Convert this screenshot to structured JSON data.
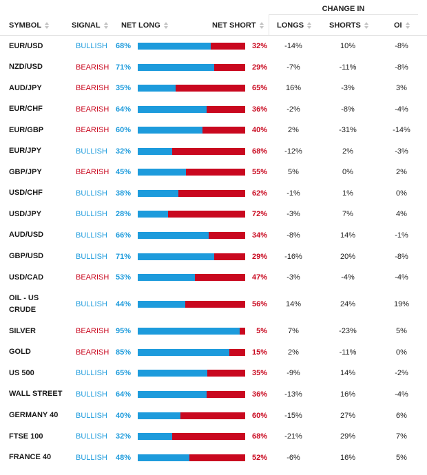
{
  "header": {
    "change_in": "CHANGE IN",
    "symbol": "SYMBOL",
    "signal": "SIGNAL",
    "net_long": "NET LONG",
    "net_short": "NET SHORT",
    "longs": "LONGS",
    "shorts": "SHORTS",
    "oi": "OI"
  },
  "colors": {
    "bullish": "#1d9bdc",
    "bearish": "#c9081f"
  },
  "rows": [
    {
      "symbol": "EUR/USD",
      "signal": "BULLISH",
      "net_long": "68%",
      "net_short": "32%",
      "long_fraction": 0.68,
      "longs": "-14%",
      "shorts": "10%",
      "oi": "-8%"
    },
    {
      "symbol": "NZD/USD",
      "signal": "BEARISH",
      "net_long": "71%",
      "net_short": "29%",
      "long_fraction": 0.71,
      "longs": "-7%",
      "shorts": "-11%",
      "oi": "-8%"
    },
    {
      "symbol": "AUD/JPY",
      "signal": "BEARISH",
      "net_long": "35%",
      "net_short": "65%",
      "long_fraction": 0.35,
      "longs": "16%",
      "shorts": "-3%",
      "oi": "3%"
    },
    {
      "symbol": "EUR/CHF",
      "signal": "BEARISH",
      "net_long": "64%",
      "net_short": "36%",
      "long_fraction": 0.64,
      "longs": "-2%",
      "shorts": "-8%",
      "oi": "-4%"
    },
    {
      "symbol": "EUR/GBP",
      "signal": "BEARISH",
      "net_long": "60%",
      "net_short": "40%",
      "long_fraction": 0.6,
      "longs": "2%",
      "shorts": "-31%",
      "oi": "-14%"
    },
    {
      "symbol": "EUR/JPY",
      "signal": "BULLISH",
      "net_long": "32%",
      "net_short": "68%",
      "long_fraction": 0.32,
      "longs": "-12%",
      "shorts": "2%",
      "oi": "-3%"
    },
    {
      "symbol": "GBP/JPY",
      "signal": "BEARISH",
      "net_long": "45%",
      "net_short": "55%",
      "long_fraction": 0.45,
      "longs": "5%",
      "shorts": "0%",
      "oi": "2%"
    },
    {
      "symbol": "USD/CHF",
      "signal": "BULLISH",
      "net_long": "38%",
      "net_short": "62%",
      "long_fraction": 0.38,
      "longs": "-1%",
      "shorts": "1%",
      "oi": "0%"
    },
    {
      "symbol": "USD/JPY",
      "signal": "BULLISH",
      "net_long": "28%",
      "net_short": "72%",
      "long_fraction": 0.28,
      "longs": "-3%",
      "shorts": "7%",
      "oi": "4%"
    },
    {
      "symbol": "AUD/USD",
      "signal": "BULLISH",
      "net_long": "66%",
      "net_short": "34%",
      "long_fraction": 0.66,
      "longs": "-8%",
      "shorts": "14%",
      "oi": "-1%"
    },
    {
      "symbol": "GBP/USD",
      "signal": "BULLISH",
      "net_long": "71%",
      "net_short": "29%",
      "long_fraction": 0.71,
      "longs": "-16%",
      "shorts": "20%",
      "oi": "-8%"
    },
    {
      "symbol": "USD/CAD",
      "signal": "BEARISH",
      "net_long": "53%",
      "net_short": "47%",
      "long_fraction": 0.53,
      "longs": "-3%",
      "shorts": "-4%",
      "oi": "-4%"
    },
    {
      "symbol": "OIL - US CRUDE",
      "signal": "BULLISH",
      "net_long": "44%",
      "net_short": "56%",
      "long_fraction": 0.44,
      "longs": "14%",
      "shorts": "24%",
      "oi": "19%"
    },
    {
      "symbol": "SILVER",
      "signal": "BEARISH",
      "net_long": "95%",
      "net_short": "5%",
      "long_fraction": 0.95,
      "longs": "7%",
      "shorts": "-23%",
      "oi": "5%"
    },
    {
      "symbol": "GOLD",
      "signal": "BEARISH",
      "net_long": "85%",
      "net_short": "15%",
      "long_fraction": 0.85,
      "longs": "2%",
      "shorts": "-11%",
      "oi": "0%"
    },
    {
      "symbol": "US 500",
      "signal": "BULLISH",
      "net_long": "65%",
      "net_short": "35%",
      "long_fraction": 0.65,
      "longs": "-9%",
      "shorts": "14%",
      "oi": "-2%"
    },
    {
      "symbol": "WALL STREET",
      "signal": "BULLISH",
      "net_long": "64%",
      "net_short": "36%",
      "long_fraction": 0.64,
      "longs": "-13%",
      "shorts": "16%",
      "oi": "-4%"
    },
    {
      "symbol": "GERMANY 40",
      "signal": "BULLISH",
      "net_long": "40%",
      "net_short": "60%",
      "long_fraction": 0.4,
      "longs": "-15%",
      "shorts": "27%",
      "oi": "6%"
    },
    {
      "symbol": "FTSE 100",
      "signal": "BULLISH",
      "net_long": "32%",
      "net_short": "68%",
      "long_fraction": 0.32,
      "longs": "-21%",
      "shorts": "29%",
      "oi": "7%"
    },
    {
      "symbol": "FRANCE 40",
      "signal": "BULLISH",
      "net_long": "48%",
      "net_short": "52%",
      "long_fraction": 0.48,
      "longs": "-6%",
      "shorts": "16%",
      "oi": "5%"
    }
  ]
}
